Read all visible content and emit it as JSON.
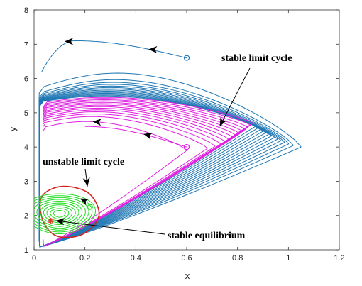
{
  "chart_data": {
    "type": "line",
    "title": "",
    "xlabel": "x",
    "ylabel": "y",
    "xlim": [
      0,
      1.2
    ],
    "ylim": [
      1,
      8
    ],
    "xticks": [
      "0",
      "0.2",
      "0.4",
      "0.6",
      "0.8",
      "1",
      "1.2"
    ],
    "yticks": [
      "1",
      "2",
      "3",
      "4",
      "5",
      "6",
      "7",
      "8"
    ],
    "grid": false,
    "annotations": [
      {
        "text": "stable limit cycle",
        "target": [
          0.73,
          4.6
        ]
      },
      {
        "text": "unstable limit cycle",
        "target": [
          0.21,
          2.85
        ]
      },
      {
        "text": "stable equilibrium",
        "target": [
          0.08,
          1.85
        ]
      }
    ],
    "start_points": [
      {
        "x": 0.6,
        "y": 6.6,
        "color": "#1f77b4"
      },
      {
        "x": 0.6,
        "y": 4.0,
        "color": "#e020e0"
      },
      {
        "x": 0.22,
        "y": 2.25,
        "color": "#22dd22"
      }
    ],
    "equilibrium": {
      "x": 0.065,
      "y": 1.85,
      "color": "#e8392c"
    },
    "series": [
      {
        "color": "#1f77b4",
        "kind": "spiral-in",
        "a0": 0.06,
        "a1": 0.25,
        "xmax0": 1.05,
        "xmax1": 0.87,
        "ymax0": 7.05,
        "ymax1": 5.55,
        "ypeak0": 7.1,
        "xpeak0": 0.16,
        "loops": 14
      },
      {
        "color": "#e020e0",
        "kind": "spiral-out",
        "xmax0": 0.6,
        "xmax1": 0.86,
        "ymax0": 4.8,
        "ymax1": 5.5,
        "loops": 14
      },
      {
        "color": "#d42020",
        "kind": "unstable-cycle",
        "x": [
          0.03,
          0.11,
          0.215,
          0.255,
          0.19,
          0.09,
          0.035
        ],
        "y": [
          2.55,
          2.85,
          2.65,
          2.0,
          1.45,
          1.4,
          1.85
        ]
      },
      {
        "color": "#22dd22",
        "kind": "inner-spiral",
        "loops": 10
      }
    ]
  }
}
